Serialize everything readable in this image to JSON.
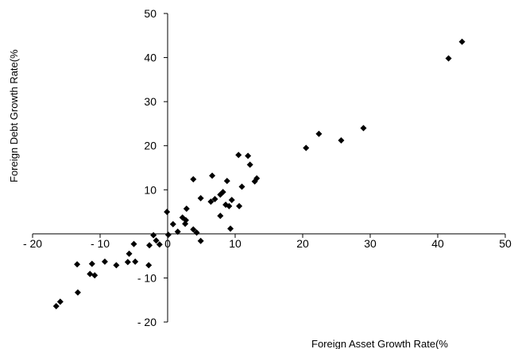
{
  "chart_data": {
    "type": "scatter",
    "title": "",
    "xlabel": "Foreign Asset Growth Rate(%",
    "ylabel": "Foreign Debt Growth Rate(%",
    "xlim": [
      -20,
      50
    ],
    "ylim": [
      -20,
      50
    ],
    "xticks": [
      -20,
      -10,
      0,
      10,
      20,
      30,
      40,
      50
    ],
    "yticks": [
      -20,
      -10,
      10,
      20,
      30,
      40,
      50
    ],
    "xtick_labels": [
      "- 20",
      "- 10",
      "0",
      "10",
      "20",
      "30",
      "40",
      "50"
    ],
    "ytick_labels": [
      "- 20",
      "- 10",
      "10",
      "20",
      "30",
      "40",
      "50"
    ],
    "grid": false,
    "marker": "diamond",
    "marker_color": "#000000",
    "points": [
      [
        43.6,
        43.6
      ],
      [
        41.6,
        39.8
      ],
      [
        29.0,
        24.0
      ],
      [
        25.7,
        21.2
      ],
      [
        22.4,
        22.7
      ],
      [
        20.5,
        19.5
      ],
      [
        10.5,
        17.9
      ],
      [
        11.9,
        17.7
      ],
      [
        12.2,
        15.7
      ],
      [
        13.2,
        12.6
      ],
      [
        12.9,
        11.9
      ],
      [
        11.0,
        10.7
      ],
      [
        6.6,
        13.2
      ],
      [
        8.8,
        12.0
      ],
      [
        3.8,
        12.4
      ],
      [
        8.2,
        9.5
      ],
      [
        7.8,
        8.9
      ],
      [
        9.5,
        7.7
      ],
      [
        7.0,
        7.9
      ],
      [
        6.4,
        7.3
      ],
      [
        8.6,
        6.6
      ],
      [
        9.1,
        6.3
      ],
      [
        10.6,
        6.3
      ],
      [
        4.9,
        8.1
      ],
      [
        2.8,
        5.7
      ],
      [
        2.2,
        3.7
      ],
      [
        2.7,
        3.1
      ],
      [
        2.6,
        2.3
      ],
      [
        0.8,
        2.2
      ],
      [
        1.5,
        0.5
      ],
      [
        -0.1,
        5.0
      ],
      [
        7.8,
        4.1
      ],
      [
        3.8,
        1.0
      ],
      [
        4.3,
        0.3
      ],
      [
        9.3,
        1.2
      ],
      [
        4.9,
        -1.6
      ],
      [
        0.1,
        -0.2
      ],
      [
        -2.1,
        -0.3
      ],
      [
        -1.7,
        -1.5
      ],
      [
        -1.2,
        -2.4
      ],
      [
        -2.7,
        -2.6
      ],
      [
        -5.0,
        -2.3
      ],
      [
        -5.7,
        -4.5
      ],
      [
        -9.3,
        -6.3
      ],
      [
        -4.8,
        -6.3
      ],
      [
        -2.8,
        -7.1
      ],
      [
        -5.9,
        -6.4
      ],
      [
        -7.6,
        -7.1
      ],
      [
        -11.2,
        -6.8
      ],
      [
        -10.8,
        -9.4
      ],
      [
        -11.5,
        -9.1
      ],
      [
        -13.4,
        -6.9
      ],
      [
        -13.3,
        -13.3
      ],
      [
        -15.9,
        -15.4
      ],
      [
        -16.5,
        -16.4
      ]
    ]
  }
}
